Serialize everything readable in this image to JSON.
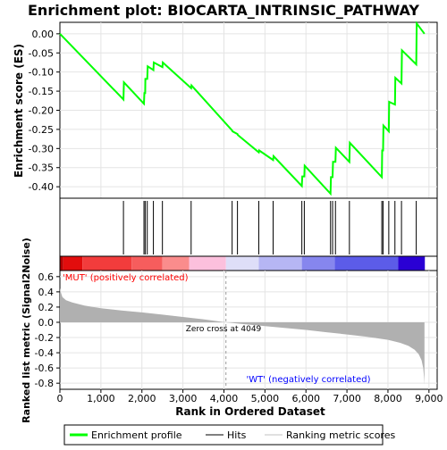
{
  "chart_data": {
    "type": "line",
    "title": "Enrichment plot: BIOCARTA_INTRINSIC_PATHWAY",
    "panels": {
      "es": {
        "ylabel": "Enrichment score (ES)",
        "ylim": [
          -0.43,
          0.03
        ],
        "yticks": [
          "0.00",
          "-0.05",
          "-0.10",
          "-0.15",
          "-0.20",
          "-0.25",
          "-0.30",
          "-0.35",
          "-0.40"
        ],
        "ytick_values": [
          0,
          -0.05,
          -0.1,
          -0.15,
          -0.2,
          -0.25,
          -0.3,
          -0.35,
          -0.4
        ],
        "line_color": "#00ff00",
        "series": [
          {
            "name": "Enrichment profile",
            "x": [
              0,
              1550,
              1560,
              2050,
              2060,
              2080,
              2085,
              2130,
              2140,
              2280,
              2290,
              2500,
              2510,
              3200,
              3210,
              4200,
              4210,
              4330,
              4340,
              4850,
              4860,
              5200,
              5210,
              5900,
              5910,
              5960,
              5970,
              6600,
              6610,
              6650,
              6660,
              6720,
              6730,
              7060,
              7070,
              7850,
              7860,
              7880,
              7890,
              8020,
              8030,
              8170,
              8180,
              8330,
              8340,
              8690,
              8700,
              8890
            ],
            "y": [
              0,
              -0.172,
              -0.127,
              -0.183,
              -0.155,
              -0.155,
              -0.118,
              -0.118,
              -0.085,
              -0.095,
              -0.075,
              -0.087,
              -0.075,
              -0.142,
              -0.135,
              -0.253,
              -0.255,
              -0.262,
              -0.265,
              -0.31,
              -0.305,
              -0.33,
              -0.32,
              -0.398,
              -0.373,
              -0.373,
              -0.345,
              -0.418,
              -0.375,
              -0.375,
              -0.335,
              -0.335,
              -0.298,
              -0.335,
              -0.285,
              -0.375,
              -0.305,
              -0.305,
              -0.24,
              -0.255,
              -0.178,
              -0.185,
              -0.115,
              -0.13,
              -0.043,
              -0.08,
              0.027,
              0.0
            ]
          }
        ]
      },
      "hits": {
        "legend_name": "Hits",
        "x": [
          1550,
          2050,
          2080,
          2130,
          2280,
          2500,
          3200,
          4200,
          4330,
          4850,
          5200,
          5900,
          5960,
          6600,
          6650,
          6720,
          7060,
          7850,
          7880,
          8020,
          8170,
          8330,
          8690
        ]
      },
      "ranking_bar": {
        "segments": [
          {
            "x0": 0,
            "x1": 80,
            "color": "#b40000"
          },
          {
            "x0": 80,
            "x1": 550,
            "color": "#e20d0d"
          },
          {
            "x0": 550,
            "x1": 1750,
            "color": "#f23c3c"
          },
          {
            "x0": 1750,
            "x1": 2500,
            "color": "#f65d5d"
          },
          {
            "x0": 2500,
            "x1": 3150,
            "color": "#fa8c8c"
          },
          {
            "x0": 3150,
            "x1": 4050,
            "color": "#fcc0dd"
          },
          {
            "x0": 4050,
            "x1": 4850,
            "color": "#dedef8"
          },
          {
            "x0": 4850,
            "x1": 5900,
            "color": "#b6b6f4"
          },
          {
            "x0": 5900,
            "x1": 6700,
            "color": "#8686ee"
          },
          {
            "x0": 6700,
            "x1": 8250,
            "color": "#5c5ce8"
          },
          {
            "x0": 8250,
            "x1": 8900,
            "color": "#2a00d4"
          }
        ]
      },
      "metric": {
        "ylabel": "Ranked list metric (Signal2Noise)",
        "ylim": [
          -0.88,
          0.68
        ],
        "yticks": [
          "0.6",
          "0.4",
          "0.2",
          "0.0",
          "-0.2",
          "-0.4",
          "-0.6",
          "-0.8"
        ],
        "ytick_values": [
          0.6,
          0.4,
          0.2,
          0.0,
          -0.2,
          -0.4,
          -0.6,
          -0.8
        ],
        "fill_color": "#b0b0b0",
        "profile": {
          "x": [
            0,
            20,
            60,
            150,
            300,
            600,
            1000,
            1500,
            2000,
            2500,
            3000,
            3500,
            4049,
            4500,
            5000,
            5500,
            6000,
            6500,
            7000,
            7500,
            8000,
            8300,
            8500,
            8650,
            8750,
            8820,
            8860,
            8880,
            8890
          ],
          "y": [
            0.45,
            0.4,
            0.33,
            0.29,
            0.26,
            0.22,
            0.185,
            0.155,
            0.13,
            0.1,
            0.07,
            0.04,
            0.0,
            -0.025,
            -0.05,
            -0.075,
            -0.1,
            -0.13,
            -0.16,
            -0.19,
            -0.23,
            -0.27,
            -0.31,
            -0.36,
            -0.42,
            -0.5,
            -0.6,
            -0.72,
            -0.82
          ]
        },
        "zero_cross_label": "Zero cross at 4049",
        "zero_cross_x": 4049,
        "pos_label": "'MUT' (positively correlated)",
        "neg_label": "'WT' (negatively correlated)",
        "pos_label_color": "#ff0000",
        "neg_label_color": "#0000ff"
      }
    },
    "xaxis": {
      "label": "Rank in Ordered Dataset",
      "xlim": [
        0,
        9200
      ],
      "ticks": [
        "0",
        "1,000",
        "2,000",
        "3,000",
        "4,000",
        "5,000",
        "6,000",
        "7,000",
        "8,000",
        "9,000"
      ],
      "tick_values": [
        0,
        1000,
        2000,
        3000,
        4000,
        5000,
        6000,
        7000,
        8000,
        9000
      ]
    },
    "legend": {
      "position": "bottom",
      "items": [
        {
          "label": "Enrichment profile",
          "color": "#00ff00"
        },
        {
          "label": "Hits",
          "color": "#000000"
        },
        {
          "label": "Ranking metric scores",
          "color": "#c0c0c0"
        }
      ]
    }
  }
}
